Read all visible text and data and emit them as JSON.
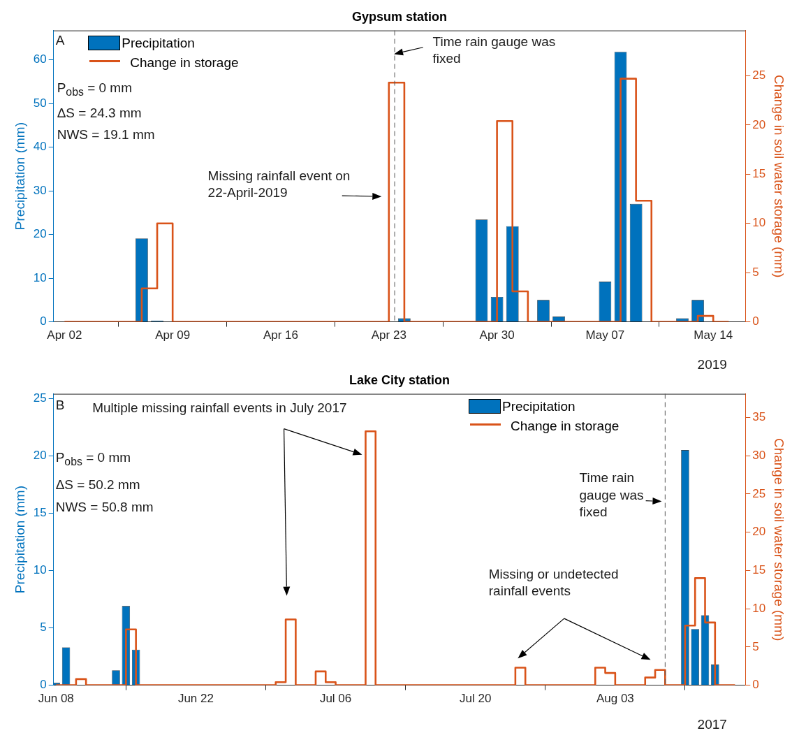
{
  "chart_data": [
    {
      "type": "bar",
      "title": "Gypsum station",
      "ylabel": "Precipitation (mm)",
      "y2label": "Change in soil water storage (mm)",
      "xlim": [
        "2019-04-01T07:00",
        "2019-05-16T02:00"
      ],
      "xticks": [
        {
          "value": "2019-04-02",
          "label": "Apr 02"
        },
        {
          "value": "2019-04-09",
          "label": "Apr 09"
        },
        {
          "value": "2019-04-16",
          "label": "Apr 16"
        },
        {
          "value": "2019-04-23",
          "label": "Apr 23"
        },
        {
          "value": "2019-04-30",
          "label": "Apr 30"
        },
        {
          "value": "2019-05-07",
          "label": "May 07"
        },
        {
          "value": "2019-05-14",
          "label": "May 14"
        }
      ],
      "ylim": [
        0,
        66.7
      ],
      "yticks": [
        0,
        10,
        20,
        30,
        40,
        50,
        60
      ],
      "y2lim": [
        0,
        29.6
      ],
      "y2ticks": [
        0,
        5,
        10,
        15,
        20,
        25
      ],
      "legend": "top left",
      "series": [
        {
          "name": "Precipitation",
          "type": "bar",
          "color": "#0072bd",
          "x": [
            "2019-04-07",
            "2019-04-08",
            "2019-04-24",
            "2019-04-29",
            "2019-04-30",
            "2019-05-01",
            "2019-05-03",
            "2019-05-04",
            "2019-05-07",
            "2019-05-08",
            "2019-05-09",
            "2019-05-12",
            "2019-05-13"
          ],
          "values": [
            19.1,
            0.3,
            0.8,
            23.4,
            5.7,
            21.9,
            5.0,
            1.2,
            9.2,
            61.8,
            27.0,
            0.8,
            5.0
          ]
        },
        {
          "name": "Change in storage",
          "type": "step",
          "axis": "y2",
          "color": "#d95319",
          "x": [
            "2019-04-02",
            "2019-04-07",
            "2019-04-08",
            "2019-04-09",
            "2019-04-23",
            "2019-04-24",
            "2019-04-30",
            "2019-05-01",
            "2019-05-02",
            "2019-05-08",
            "2019-05-09",
            "2019-05-10",
            "2019-05-13",
            "2019-05-14",
            "2019-05-15"
          ],
          "values": [
            0,
            3.4,
            10.0,
            0,
            24.3,
            0,
            20.4,
            3.1,
            0,
            24.7,
            12.3,
            0,
            0.6,
            0,
            0
          ]
        }
      ],
      "ref_lines": [
        {
          "axis": "x",
          "value": "2019-04-23T09:00",
          "label": "Time rain gauge was fixed",
          "color": "#555555",
          "line_style": "dashed"
        }
      ],
      "annotations": [
        "A",
        "P$_{obs}$ = 0 mm",
        "ΔS = 24.3 mm",
        "NWS = 19.1 mm",
        "Missing rainfall event on 22-April-2019",
        "2019"
      ]
    },
    {
      "type": "bar",
      "title": "Lake City station",
      "ylabel": "Precipitation (mm)",
      "y2label": "Change in soil water storage (mm)",
      "xlim": [
        "2017-06-07T18:00",
        "2017-08-16T01:00"
      ],
      "xticks": [
        {
          "value": "2017-06-08",
          "label": "Jun 08"
        },
        {
          "value": "2017-06-22",
          "label": "Jun 22"
        },
        {
          "value": "2017-07-06",
          "label": "Jul 06"
        },
        {
          "value": "2017-07-20",
          "label": "Jul 20"
        },
        {
          "value": "2017-08-03",
          "label": "Aug 03"
        }
      ],
      "ylim": [
        0,
        25.4
      ],
      "yticks": [
        0,
        5,
        10,
        15,
        20,
        25
      ],
      "y2lim": [
        0,
        38.1
      ],
      "y2ticks": [
        0,
        5,
        10,
        15,
        20,
        25,
        30,
        35
      ],
      "legend": "top",
      "series": [
        {
          "name": "Precipitation",
          "type": "bar",
          "color": "#0072bd",
          "x": [
            "2017-06-08",
            "2017-06-09",
            "2017-06-14",
            "2017-06-15",
            "2017-06-16",
            "2017-08-10",
            "2017-08-11",
            "2017-08-12",
            "2017-08-13"
          ],
          "values": [
            0.2,
            3.3,
            1.3,
            6.9,
            3.1,
            20.5,
            4.9,
            6.1,
            1.8
          ]
        },
        {
          "name": "Change in storage",
          "type": "step",
          "axis": "y2",
          "color": "#d95319",
          "x": [
            "2017-06-08",
            "2017-06-10",
            "2017-06-11",
            "2017-06-15",
            "2017-06-16",
            "2017-06-30",
            "2017-07-01",
            "2017-07-02",
            "2017-07-04",
            "2017-07-05",
            "2017-07-06",
            "2017-07-09",
            "2017-07-10",
            "2017-07-24",
            "2017-07-25",
            "2017-08-01",
            "2017-08-02",
            "2017-08-03",
            "2017-08-06",
            "2017-08-07",
            "2017-08-08",
            "2017-08-10",
            "2017-08-11",
            "2017-08-12",
            "2017-08-13",
            "2017-08-15"
          ],
          "values": [
            0,
            0.8,
            0,
            7.3,
            0,
            0.4,
            8.6,
            0,
            1.8,
            0.4,
            0,
            33.2,
            0,
            2.3,
            0,
            2.3,
            1.6,
            0,
            1.0,
            2.0,
            0,
            7.8,
            14.0,
            8.2,
            0,
            0
          ]
        }
      ],
      "ref_lines": [
        {
          "axis": "x",
          "value": "2017-08-08",
          "label": "Time rain gauge was fixed",
          "color": "#555555",
          "line_style": "dashed"
        }
      ],
      "annotations": [
        "B",
        "Multiple missing rainfall events in July 2017",
        "P$_{obs}$ = 0 mm",
        "ΔS = 50.2 mm",
        "NWS = 50.8 mm",
        "Missing or undetected rainfall events",
        "2017"
      ]
    }
  ]
}
